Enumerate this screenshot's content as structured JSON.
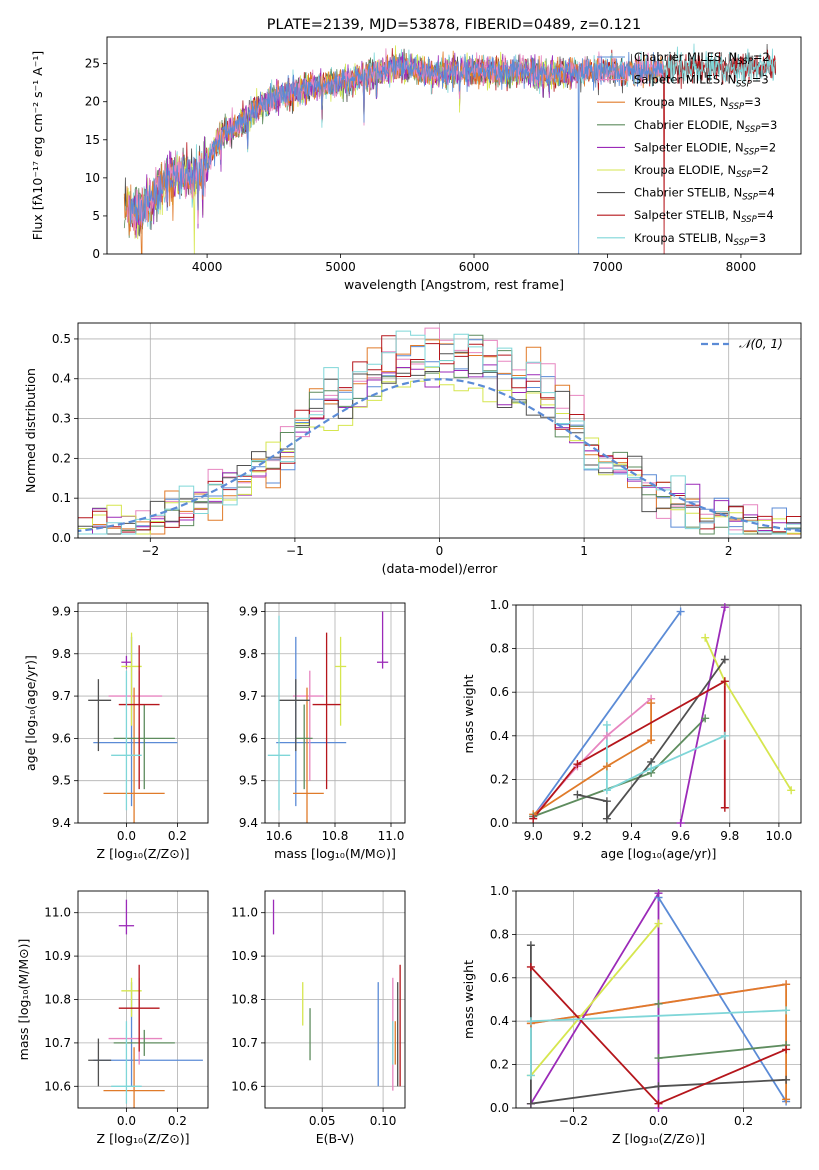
{
  "colors": {
    "chabrier_miles": "#5b8bd6",
    "salpeter_miles": "#e785c0",
    "kroupa_miles": "#e07b2a",
    "chabrier_elodie": "#5e8c5e",
    "salpeter_elodie": "#9b2ab8",
    "kroupa_elodie": "#d6e64f",
    "chabrier_stelib": "#505050",
    "salpeter_stelib": "#b5161c",
    "kroupa_stelib": "#7fd6d8",
    "gaussian": "#5b8bd6",
    "grid": "#b0b0b0"
  },
  "chart_data": [
    {
      "id": "spectrum",
      "type": "line",
      "title": "PLATE=2139, MJD=53878, FIBERID=0489, z=0.121",
      "xlabel": "wavelength [Angstrom, rest frame]",
      "ylabel": "Flux [fλ10⁻¹⁷ erg cm⁻² s⁻¹ A⁻¹]",
      "xlim": [
        3250,
        8450
      ],
      "ylim": [
        0,
        28.5
      ],
      "xticks": [
        4000,
        5000,
        6000,
        7000,
        8000
      ],
      "yticks": [
        0,
        5,
        10,
        15,
        20,
        25
      ],
      "grid": false,
      "legend_position": "right",
      "x": [
        3400,
        3500,
        3600,
        3700,
        3800,
        3900,
        4000,
        4100,
        4200,
        4300,
        4400,
        4500,
        4600,
        4700,
        4800,
        4900,
        5000,
        5100,
        5200,
        5300,
        5400,
        5500,
        5600,
        5700,
        5800,
        5900,
        6000,
        6100,
        6200,
        6300,
        6400,
        6500,
        6600,
        6700,
        6800,
        6900,
        7000,
        7100,
        7200,
        7300,
        7400,
        7500,
        7600,
        7700,
        7800,
        7900,
        8000,
        8100,
        8200
      ],
      "flux": [
        5.8,
        5.6,
        7.5,
        9.5,
        10.5,
        10.0,
        12.0,
        15.5,
        16.5,
        18.0,
        19.5,
        20.5,
        21.0,
        21.5,
        22.0,
        22.5,
        22.5,
        23.0,
        23.5,
        24.0,
        24.5,
        24.5,
        24.0,
        23.5,
        24.0,
        24.0,
        24.0,
        24.0,
        24.0,
        24.0,
        23.8,
        23.5,
        23.7,
        23.8,
        24.0,
        24.0,
        24.0,
        24.0,
        24.0,
        24.0,
        24.0,
        24.2,
        24.4,
        24.5,
        24.5,
        24.5,
        24.6,
        24.6,
        24.7
      ],
      "legend": [
        "Chabrier MILES, N_SSP=2",
        "Salpeter MILES, N_SSP=3",
        "Kroupa MILES, N_SSP=3",
        "Chabrier ELODIE, N_SSP=3",
        "Salpeter ELODIE, N_SSP=2",
        "Kroupa ELODIE, N_SSP=2",
        "Chabrier STELIB, N_SSP=4",
        "Salpeter STELIB, N_SSP=4",
        "Kroupa STELIB, N_SSP=3"
      ]
    },
    {
      "id": "residual-histogram",
      "type": "line",
      "xlabel": "(data-model)/error",
      "ylabel": "Normed distribution",
      "xlim": [
        -2.5,
        2.5
      ],
      "ylim": [
        0,
        0.54
      ],
      "xticks": [
        -2,
        -1,
        0,
        1,
        2
      ],
      "yticks": [
        0.0,
        0.1,
        0.2,
        0.3,
        0.4,
        0.5
      ],
      "grid": true,
      "legend_position": "top-right",
      "gaussian_label": "𝒩(0, 1)",
      "bin_width": 0.1
    },
    {
      "id": "age-vs-metallicity",
      "type": "scatter",
      "xlabel": "Z [log₁₀(Z/Z⊙)]",
      "ylabel": "age  [log₁₀(age/yr)]",
      "xlim": [
        -0.19,
        0.32
      ],
      "ylim": [
        9.4,
        9.92
      ],
      "xticks": [
        0.0,
        0.2
      ],
      "yticks": [
        9.4,
        9.5,
        9.6,
        9.7,
        9.8,
        9.9
      ],
      "grid": true,
      "points": [
        {
          "model": "chabrier_miles",
          "x": 0.02,
          "xerr": [
            0.15,
            0.18
          ],
          "y": 9.59,
          "yerr": [
            0.15,
            0.25
          ]
        },
        {
          "model": "salpeter_miles",
          "x": 0.05,
          "xerr": [
            0.12,
            0.09
          ],
          "y": 9.7,
          "yerr": [
            0.2,
            0.06
          ]
        },
        {
          "model": "kroupa_miles",
          "x": 0.03,
          "xerr": [
            0.12,
            0.12
          ],
          "y": 9.47,
          "yerr": [
            0.15,
            0.25
          ]
        },
        {
          "model": "chabrier_elodie",
          "x": 0.07,
          "xerr": [
            0.12,
            0.12
          ],
          "y": 9.6,
          "yerr": [
            0.12,
            0.08
          ]
        },
        {
          "model": "salpeter_elodie",
          "x": 0.0,
          "xerr": [
            0.02,
            0.02
          ],
          "y": 9.78,
          "yerr": [
            0.015,
            0.015
          ]
        },
        {
          "model": "kroupa_elodie",
          "x": 0.02,
          "xerr": [
            0.04,
            0.04
          ],
          "y": 9.77,
          "yerr": [
            0.14,
            0.08
          ]
        },
        {
          "model": "chabrier_stelib",
          "x": -0.11,
          "xerr": [
            0.04,
            0.05
          ],
          "y": 9.69,
          "yerr": [
            0.12,
            0.05
          ]
        },
        {
          "model": "salpeter_stelib",
          "x": 0.05,
          "xerr": [
            0.08,
            0.08
          ],
          "y": 9.68,
          "yerr": [
            0.2,
            0.14
          ]
        },
        {
          "model": "kroupa_stelib",
          "x": 0.0,
          "xerr": [
            0.06,
            0.06
          ],
          "y": 9.56,
          "yerr": [
            0.13,
            0.2
          ]
        }
      ]
    },
    {
      "id": "age-vs-mass",
      "type": "scatter",
      "xlabel": "mass [log₁₀(M/M⊙)]",
      "ylabel": "",
      "xlim": [
        10.55,
        11.05
      ],
      "ylim": [
        9.4,
        9.92
      ],
      "xticks": [
        10.6,
        10.8,
        11.0
      ],
      "yticks": [
        9.4,
        9.5,
        9.6,
        9.7,
        9.8,
        9.9
      ],
      "grid": true,
      "points": [
        {
          "model": "chabrier_miles",
          "x": 10.66,
          "xerr": [
            0.07,
            0.18
          ],
          "y": 9.59,
          "yerr": [
            0.15,
            0.25
          ]
        },
        {
          "model": "salpeter_miles",
          "x": 10.71,
          "xerr": [
            0.06,
            0.05
          ],
          "y": 9.7,
          "yerr": [
            0.2,
            0.06
          ]
        },
        {
          "model": "kroupa_miles",
          "x": 10.7,
          "xerr": [
            0.05,
            0.06
          ],
          "y": 9.47,
          "yerr": [
            0.15,
            0.25
          ]
        },
        {
          "model": "chabrier_elodie",
          "x": 10.69,
          "xerr": [
            0.03,
            0.03
          ],
          "y": 9.6,
          "yerr": [
            0.12,
            0.08
          ]
        },
        {
          "model": "salpeter_elodie",
          "x": 10.97,
          "xerr": [
            0.02,
            0.02
          ],
          "y": 9.78,
          "yerr": [
            0.015,
            0.12
          ]
        },
        {
          "model": "kroupa_elodie",
          "x": 10.82,
          "xerr": [
            0.02,
            0.02
          ],
          "y": 9.77,
          "yerr": [
            0.14,
            0.07
          ]
        },
        {
          "model": "chabrier_stelib",
          "x": 10.66,
          "xerr": [
            0.06,
            0.05
          ],
          "y": 9.69,
          "yerr": [
            0.12,
            0.05
          ]
        },
        {
          "model": "salpeter_stelib",
          "x": 10.77,
          "xerr": [
            0.05,
            0.05
          ],
          "y": 9.68,
          "yerr": [
            0.2,
            0.17
          ]
        },
        {
          "model": "kroupa_stelib",
          "x": 10.6,
          "xerr": [
            0.04,
            0.04
          ],
          "y": 9.56,
          "yerr": [
            0.13,
            0.33
          ]
        }
      ]
    },
    {
      "id": "mass-weight-vs-age",
      "type": "line",
      "xlabel": "age  [log₁₀(age/yr)]",
      "ylabel": "mass weight",
      "xlim": [
        8.93,
        10.09
      ],
      "ylim": [
        0,
        1
      ],
      "xticks": [
        9.0,
        9.2,
        9.4,
        9.6,
        9.8,
        10.0
      ],
      "yticks": [
        0.0,
        0.2,
        0.4,
        0.6,
        0.8,
        1.0
      ],
      "grid": true,
      "series": [
        {
          "model": "chabrier_miles",
          "x": [
            9.0,
            9.6
          ],
          "y": [
            0.03,
            0.97
          ]
        },
        {
          "model": "salpeter_miles",
          "x": [
            9.0,
            9.18,
            9.3,
            9.48
          ],
          "y": [
            0.03,
            0.26,
            0.4,
            0.57
          ]
        },
        {
          "model": "kroupa_miles",
          "x": [
            9.0,
            9.3,
            9.48,
            9.48
          ],
          "y": [
            0.04,
            0.26,
            0.38,
            0.55
          ]
        },
        {
          "model": "chabrier_elodie",
          "x": [
            9.0,
            9.48,
            9.7
          ],
          "y": [
            0.03,
            0.23,
            0.48
          ]
        },
        {
          "model": "salpeter_elodie",
          "x": [
            9.6,
            9.78
          ],
          "y": [
            0.0,
            0.99
          ]
        },
        {
          "model": "kroupa_elodie",
          "x": [
            9.7,
            9.78,
            10.05
          ],
          "y": [
            0.85,
            0.65,
            0.15
          ]
        },
        {
          "model": "chabrier_stelib",
          "x": [
            9.18,
            9.3,
            9.3,
            9.48,
            9.78
          ],
          "y": [
            0.13,
            0.1,
            0.02,
            0.28,
            0.75
          ]
        },
        {
          "model": "salpeter_stelib",
          "x": [
            9.0,
            9.18,
            9.78,
            9.78
          ],
          "y": [
            0.02,
            0.27,
            0.65,
            0.07
          ]
        },
        {
          "model": "kroupa_stelib",
          "x": [
            9.3,
            9.3,
            9.48,
            9.78
          ],
          "y": [
            0.45,
            0.15,
            0.25,
            0.4
          ]
        }
      ]
    },
    {
      "id": "mass-vs-metallicity",
      "type": "scatter",
      "xlabel": "Z [log₁₀(Z/Z⊙)]",
      "ylabel": "mass [log₁₀(M/M⊙)]",
      "xlim": [
        -0.19,
        0.32
      ],
      "ylim": [
        10.55,
        11.05
      ],
      "xticks": [
        0.0,
        0.2
      ],
      "yticks": [
        10.6,
        10.7,
        10.8,
        10.9,
        11.0
      ],
      "grid": true,
      "points": [
        {
          "model": "chabrier_miles",
          "x": 0.02,
          "xerr": [
            0.15,
            0.28
          ],
          "y": 10.66,
          "yerr": [
            0.06,
            0.18
          ]
        },
        {
          "model": "salpeter_miles",
          "x": 0.05,
          "xerr": [
            0.12,
            0.09
          ],
          "y": 10.71,
          "yerr": [
            0.06,
            0.14
          ]
        },
        {
          "model": "kroupa_miles",
          "x": 0.03,
          "xerr": [
            0.12,
            0.12
          ],
          "y": 10.59,
          "yerr": [
            0.05,
            0.1
          ]
        },
        {
          "model": "chabrier_elodie",
          "x": 0.07,
          "xerr": [
            0.12,
            0.12
          ],
          "y": 10.7,
          "yerr": [
            0.03,
            0.03
          ]
        },
        {
          "model": "salpeter_elodie",
          "x": 0.0,
          "xerr": [
            0.03,
            0.03
          ],
          "y": 10.97,
          "yerr": [
            0.02,
            0.06
          ]
        },
        {
          "model": "kroupa_elodie",
          "x": 0.02,
          "xerr": [
            0.04,
            0.04
          ],
          "y": 10.82,
          "yerr": [
            0.06,
            0.03
          ]
        },
        {
          "model": "chabrier_stelib",
          "x": -0.11,
          "xerr": [
            0.04,
            0.05
          ],
          "y": 10.66,
          "yerr": [
            0.06,
            0.05
          ]
        },
        {
          "model": "salpeter_stelib",
          "x": 0.05,
          "xerr": [
            0.08,
            0.08
          ],
          "y": 10.78,
          "yerr": [
            0.1,
            0.1
          ]
        },
        {
          "model": "kroupa_stelib",
          "x": 0.0,
          "xerr": [
            0.06,
            0.06
          ],
          "y": 10.6,
          "yerr": [
            0.04,
            0.15
          ]
        }
      ]
    },
    {
      "id": "mass-vs-extinction",
      "type": "scatter",
      "xlabel": "E(B-V)",
      "ylabel": "",
      "xlim": [
        0.003,
        0.118
      ],
      "ylim": [
        10.55,
        11.05
      ],
      "xticks": [
        0.05,
        0.1
      ],
      "yticks": [
        10.6,
        10.7,
        10.8,
        10.9,
        11.0
      ],
      "grid": true,
      "points": [
        {
          "model": "chabrier_miles",
          "x": 0.096,
          "y": 10.72,
          "yerr": [
            0.12,
            0.12
          ]
        },
        {
          "model": "salpeter_miles",
          "x": 0.108,
          "y": 10.72,
          "yerr": [
            0.13,
            0.13
          ]
        },
        {
          "model": "kroupa_miles",
          "x": 0.11,
          "y": 10.7,
          "yerr": [
            0.05,
            0.05
          ]
        },
        {
          "model": "chabrier_elodie",
          "x": 0.04,
          "y": 10.72,
          "yerr": [
            0.06,
            0.06
          ]
        },
        {
          "model": "salpeter_elodie",
          "x": 0.01,
          "y": 10.99,
          "yerr": [
            0.04,
            0.04
          ]
        },
        {
          "model": "kroupa_elodie",
          "x": 0.034,
          "y": 10.79,
          "yerr": [
            0.05,
            0.05
          ]
        },
        {
          "model": "chabrier_stelib",
          "x": 0.112,
          "y": 10.72,
          "yerr": [
            0.12,
            0.12
          ]
        },
        {
          "model": "salpeter_stelib",
          "x": 0.114,
          "y": 10.74,
          "yerr": [
            0.14,
            0.14
          ]
        },
        {
          "model": "kroupa_stelib",
          "x": 0.108,
          "y": 10.7,
          "yerr": [
            0.05,
            0.05
          ]
        }
      ]
    },
    {
      "id": "mass-weight-vs-metallicity",
      "type": "line",
      "xlabel": "Z [log₁₀(Z/Z⊙)]",
      "ylabel": "mass weight",
      "xlim": [
        -0.335,
        0.335
      ],
      "ylim": [
        0,
        1
      ],
      "xticks": [
        -0.2,
        0.0,
        0.2
      ],
      "yticks": [
        0.0,
        0.2,
        0.4,
        0.6,
        0.8,
        1.0
      ],
      "grid": true,
      "series": [
        {
          "model": "chabrier_miles",
          "x": [
            0.0,
            0.3
          ],
          "y": [
            0.97,
            0.03
          ]
        },
        {
          "model": "salpeter_miles",
          "x": [
            -0.3,
            0.3
          ],
          "y": [
            0.39,
            0.57
          ]
        },
        {
          "model": "kroupa_miles",
          "x": [
            -0.3,
            0.3,
            0.3
          ],
          "y": [
            0.39,
            0.57,
            0.04
          ]
        },
        {
          "model": "chabrier_elodie",
          "x": [
            0.0,
            0.0,
            0.3
          ],
          "y": [
            0.48,
            0.23,
            0.29
          ]
        },
        {
          "model": "salpeter_elodie",
          "x": [
            -0.3,
            0.0,
            0.0
          ],
          "y": [
            0.02,
            0.99,
            0.0
          ]
        },
        {
          "model": "kroupa_elodie",
          "x": [
            -0.3,
            0.0
          ],
          "y": [
            0.15,
            0.85
          ]
        },
        {
          "model": "chabrier_stelib",
          "x": [
            -0.3,
            -0.3,
            0.0,
            0.3
          ],
          "y": [
            0.75,
            0.02,
            0.1,
            0.13
          ]
        },
        {
          "model": "salpeter_stelib",
          "x": [
            -0.3,
            0.0,
            0.3
          ],
          "y": [
            0.65,
            0.02,
            0.27
          ]
        },
        {
          "model": "kroupa_stelib",
          "x": [
            -0.3,
            -0.3,
            0.3
          ],
          "y": [
            0.15,
            0.4,
            0.45
          ]
        }
      ]
    }
  ]
}
